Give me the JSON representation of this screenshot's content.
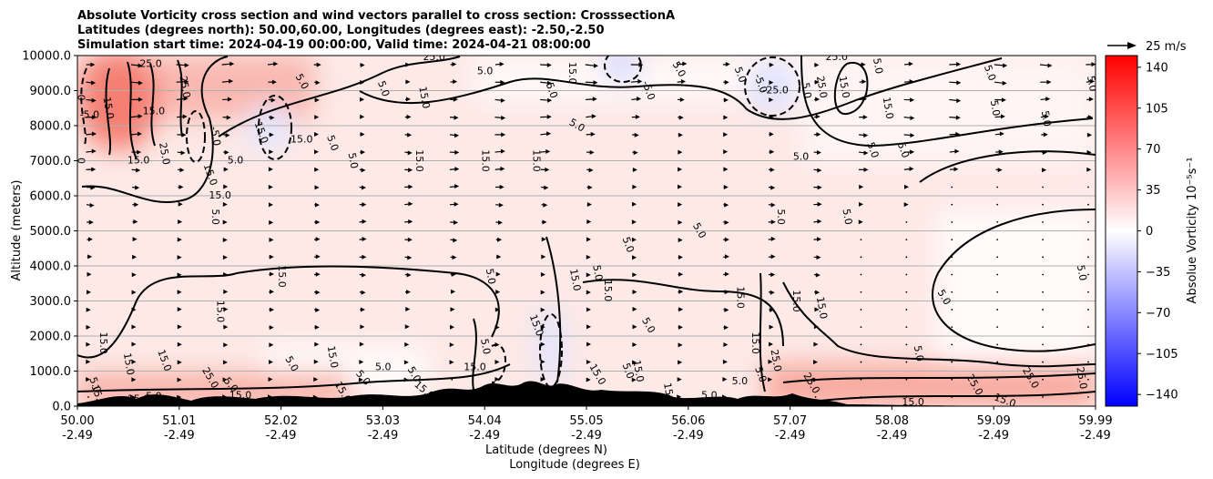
{
  "chart_data": {
    "type": "heatmap",
    "title_lines": [
      "Absolute Vorticity cross section and wind vectors parallel to cross section: CrosssectionA",
      "Latitudes (degrees north): 50.00,60.00, Longitudes (degrees east): -2.50,-2.50",
      "Simulation start time: 2024-04-19 00:00:00, Valid time: 2024-04-21 08:00:00"
    ],
    "ylabel": "Altitude (meters)",
    "xlabel_lines": [
      "Latitude (degrees N)",
      "Longitude (degrees E)"
    ],
    "xlim": [
      50.0,
      59.99
    ],
    "ylim": [
      0,
      10000
    ],
    "y_ticks": [
      0,
      1000,
      2000,
      3000,
      4000,
      5000,
      6000,
      7000,
      8000,
      9000,
      10000
    ],
    "y_tick_labels": [
      "0.0",
      "1000.0",
      "2000.0",
      "3000.0",
      "4000.0",
      "5000.0",
      "6000.0",
      "7000.0",
      "8000.0",
      "9000.0",
      "10000.0"
    ],
    "x_ticks": [
      {
        "lat": "50.00",
        "lon": "-2.49"
      },
      {
        "lat": "51.01",
        "lon": "-2.49"
      },
      {
        "lat": "52.02",
        "lon": "-2.49"
      },
      {
        "lat": "53.03",
        "lon": "-2.49"
      },
      {
        "lat": "54.04",
        "lon": "-2.49"
      },
      {
        "lat": "55.05",
        "lon": "-2.49"
      },
      {
        "lat": "56.06",
        "lon": "-2.49"
      },
      {
        "lat": "57.07",
        "lon": "-2.49"
      },
      {
        "lat": "58.08",
        "lon": "-2.49"
      },
      {
        "lat": "59.09",
        "lon": "-2.49"
      },
      {
        "lat": "59.99",
        "lon": "-2.49"
      }
    ],
    "grid": "horizontal",
    "colorbar": {
      "label": "Absolue Vorticity 10⁻⁵s⁻¹",
      "range": [
        -150,
        150
      ],
      "ticks": [
        140,
        105,
        70,
        35,
        0,
        -35,
        -70,
        -105,
        -140
      ],
      "tick_labels": [
        "140",
        "105",
        "70",
        "35",
        "0",
        "−35",
        "−70",
        "−105",
        "−140"
      ],
      "colormap": "bwr",
      "low_color": "#0000ff",
      "mid_color": "#ffffff",
      "high_color": "#ff0000"
    },
    "quiver_key": {
      "label": "25 m/s",
      "speed": 25
    },
    "contour_labels": [
      {
        "text": "5.0",
        "x": 54.0,
        "y": 9550,
        "rot": 0
      },
      {
        "text": "25.0",
        "x": 53.5,
        "y": 9950,
        "rot": 0
      },
      {
        "text": "5.0",
        "x": 52.2,
        "y": 9250,
        "rot": 60
      },
      {
        "text": "5.0",
        "x": 53.0,
        "y": 9050,
        "rot": 70
      },
      {
        "text": "15.0",
        "x": 53.4,
        "y": 8800,
        "rot": 80
      },
      {
        "text": "15.0",
        "x": 52.2,
        "y": 7600,
        "rot": 0
      },
      {
        "text": "5.0",
        "x": 52.5,
        "y": 7500,
        "rot": 70
      },
      {
        "text": "15.0",
        "x": 51.8,
        "y": 7800,
        "rot": 70
      },
      {
        "text": "-5.0",
        "x": 51.35,
        "y": 7700,
        "rot": 80
      },
      {
        "text": "5.0",
        "x": 51.55,
        "y": 7000,
        "rot": 0
      },
      {
        "text": "15.0",
        "x": 50.6,
        "y": 7000,
        "rot": 0
      },
      {
        "text": "25.0",
        "x": 50.85,
        "y": 7200,
        "rot": 80
      },
      {
        "text": "15.0",
        "x": 51.3,
        "y": 6600,
        "rot": 70
      },
      {
        "text": "15.0",
        "x": 51.4,
        "y": 6000,
        "rot": 0
      },
      {
        "text": "5.0",
        "x": 51.35,
        "y": 5400,
        "rot": 90
      },
      {
        "text": "5.0",
        "x": 52.7,
        "y": 7000,
        "rot": 80
      },
      {
        "text": "15.0",
        "x": 53.35,
        "y": 7000,
        "rot": 90
      },
      {
        "text": "15.0",
        "x": 54.0,
        "y": 7000,
        "rot": 90
      },
      {
        "text": "15.0",
        "x": 54.5,
        "y": 7000,
        "rot": 90
      },
      {
        "text": "5.0",
        "x": 54.65,
        "y": 9000,
        "rot": 70
      },
      {
        "text": "15.0",
        "x": 54.85,
        "y": 9500,
        "rot": 90
      },
      {
        "text": "5.0",
        "x": 54.9,
        "y": 8000,
        "rot": 30
      },
      {
        "text": "-5.0",
        "x": 55.6,
        "y": 9000,
        "rot": 70
      },
      {
        "text": "5.0",
        "x": 55.9,
        "y": 9600,
        "rot": 60
      },
      {
        "text": "5.0",
        "x": 56.5,
        "y": 9450,
        "rot": 70
      },
      {
        "text": "-5.0",
        "x": 56.7,
        "y": 9200,
        "rot": 70
      },
      {
        "text": "-25.0",
        "x": 56.85,
        "y": 9000,
        "rot": 0
      },
      {
        "text": "5.0",
        "x": 57.15,
        "y": 9000,
        "rot": 80
      },
      {
        "text": "25.0",
        "x": 57.3,
        "y": 9100,
        "rot": 80
      },
      {
        "text": "15.0",
        "x": 57.52,
        "y": 9100,
        "rot": 80
      },
      {
        "text": "25.0",
        "x": 57.45,
        "y": 9950,
        "rot": 0
      },
      {
        "text": "5.0",
        "x": 57.85,
        "y": 9700,
        "rot": 80
      },
      {
        "text": "15.0",
        "x": 57.95,
        "y": 8500,
        "rot": 80
      },
      {
        "text": "5.0",
        "x": 58.95,
        "y": 9500,
        "rot": 70
      },
      {
        "text": "5.0",
        "x": 59.0,
        "y": 8500,
        "rot": 80
      },
      {
        "text": "5.0",
        "x": 59.5,
        "y": 8200,
        "rot": 80
      },
      {
        "text": "5.0",
        "x": 57.8,
        "y": 7300,
        "rot": 70
      },
      {
        "text": "5.0",
        "x": 58.1,
        "y": 7300,
        "rot": 70
      },
      {
        "text": "5.0",
        "x": 57.1,
        "y": 7100,
        "rot": 0
      },
      {
        "text": "5.0",
        "x": 56.9,
        "y": 5400,
        "rot": 90
      },
      {
        "text": "5.0",
        "x": 57.55,
        "y": 5400,
        "rot": 80
      },
      {
        "text": "5.0",
        "x": 56.1,
        "y": 5000,
        "rot": 60
      },
      {
        "text": "5.0",
        "x": 55.4,
        "y": 4600,
        "rot": 70
      },
      {
        "text": "5.0",
        "x": 55.1,
        "y": 3800,
        "rot": 80
      },
      {
        "text": "15.0",
        "x": 55.2,
        "y": 3300,
        "rot": 90
      },
      {
        "text": "15.0",
        "x": 54.88,
        "y": 3600,
        "rot": 80
      },
      {
        "text": "5.0",
        "x": 54.05,
        "y": 3700,
        "rot": 80
      },
      {
        "text": "5.0",
        "x": 55.6,
        "y": 2300,
        "rot": 60
      },
      {
        "text": "15.0",
        "x": 54.5,
        "y": 2300,
        "rot": 70
      },
      {
        "text": "5.0",
        "x": 54.0,
        "y": 1700,
        "rot": 80
      },
      {
        "text": "15.0",
        "x": 52.0,
        "y": 3700,
        "rot": 90
      },
      {
        "text": "15.0",
        "x": 51.4,
        "y": 2700,
        "rot": 90
      },
      {
        "text": "15.0",
        "x": 50.25,
        "y": 1800,
        "rot": 90
      },
      {
        "text": "15.0",
        "x": 50.5,
        "y": 1200,
        "rot": 80
      },
      {
        "text": "15.0",
        "x": 50.85,
        "y": 1300,
        "rot": 70
      },
      {
        "text": "5.0",
        "x": 50.17,
        "y": 600,
        "rot": 70
      },
      {
        "text": "15.0",
        "x": 50.2,
        "y": 300,
        "rot": 70
      },
      {
        "text": "15.0",
        "x": 50.6,
        "y": 200,
        "rot": 0
      },
      {
        "text": "5.0",
        "x": 50.75,
        "y": 270,
        "rot": 0
      },
      {
        "text": "25.0",
        "x": 51.3,
        "y": 800,
        "rot": 60
      },
      {
        "text": "5.0",
        "x": 51.5,
        "y": 600,
        "rot": 50
      },
      {
        "text": "15.0",
        "x": 51.6,
        "y": 300,
        "rot": 0
      },
      {
        "text": "15.0",
        "x": 52.5,
        "y": 1400,
        "rot": 80
      },
      {
        "text": "5.0",
        "x": 52.1,
        "y": 1200,
        "rot": 60
      },
      {
        "text": "5.0",
        "x": 52.8,
        "y": 800,
        "rot": 50
      },
      {
        "text": "15.0",
        "x": 52.6,
        "y": 400,
        "rot": 60
      },
      {
        "text": "5.0",
        "x": 53.3,
        "y": 900,
        "rot": 60
      },
      {
        "text": "15.0",
        "x": 53.4,
        "y": 450,
        "rot": 40
      },
      {
        "text": "15.0",
        "x": 53.9,
        "y": 1100,
        "rot": 0
      },
      {
        "text": "5.0",
        "x": 53.0,
        "y": 1100,
        "rot": 0
      },
      {
        "text": "15.0",
        "x": 55.1,
        "y": 900,
        "rot": 60
      },
      {
        "text": "5.0",
        "x": 55.4,
        "y": 1000,
        "rot": 70
      },
      {
        "text": "15.0",
        "x": 55.5,
        "y": 1000,
        "rot": 80
      },
      {
        "text": "5.0",
        "x": 56.5,
        "y": 700,
        "rot": 0
      },
      {
        "text": "5.0",
        "x": 56.2,
        "y": 300,
        "rot": 0
      },
      {
        "text": "5.0",
        "x": 56.7,
        "y": 900,
        "rot": 70
      },
      {
        "text": "15.0",
        "x": 55.8,
        "y": 350,
        "rot": 80
      },
      {
        "text": "25.0",
        "x": 56.85,
        "y": 1300,
        "rot": 80
      },
      {
        "text": "15.0",
        "x": 56.65,
        "y": 1800,
        "rot": 90
      },
      {
        "text": "15.0",
        "x": 56.5,
        "y": 3100,
        "rot": 90
      },
      {
        "text": "15.0",
        "x": 57.05,
        "y": 3000,
        "rot": 90
      },
      {
        "text": "15.0",
        "x": 57.3,
        "y": 2800,
        "rot": 80
      },
      {
        "text": "25.0",
        "x": 57.2,
        "y": 650,
        "rot": 60
      },
      {
        "text": "5.0",
        "x": 58.25,
        "y": 1500,
        "rot": 80
      },
      {
        "text": "5.0",
        "x": 58.5,
        "y": 3100,
        "rot": 60
      },
      {
        "text": "15.0",
        "x": 58.2,
        "y": 100,
        "rot": 0
      },
      {
        "text": "25.0",
        "x": 58.8,
        "y": 600,
        "rot": 60
      },
      {
        "text": "25.0",
        "x": 59.35,
        "y": 800,
        "rot": 60
      },
      {
        "text": "15.0",
        "x": 59.1,
        "y": 150,
        "rot": 20
      },
      {
        "text": "25.0",
        "x": 59.85,
        "y": 800,
        "rot": 80
      },
      {
        "text": "5.0",
        "x": 59.85,
        "y": 3800,
        "rot": 80
      },
      {
        "text": "5.0",
        "x": 59.95,
        "y": 9200,
        "rot": 80
      },
      {
        "text": "15.0",
        "x": 50.75,
        "y": 8400,
        "rot": 0
      },
      {
        "text": "15.0",
        "x": 50.3,
        "y": 8500,
        "rot": 80
      },
      {
        "text": "-5.0",
        "x": 50.12,
        "y": 8300,
        "rot": 0
      },
      {
        "text": "25.0",
        "x": 51.05,
        "y": 9100,
        "rot": 80
      },
      {
        "text": "25.0",
        "x": 50.72,
        "y": 9750,
        "rot": 0
      },
      {
        "text": "0",
        "x": 50.03,
        "y": 7000,
        "rot": 90
      },
      {
        "text": "0",
        "x": 50.03,
        "y": 8800,
        "rot": 90
      }
    ]
  }
}
